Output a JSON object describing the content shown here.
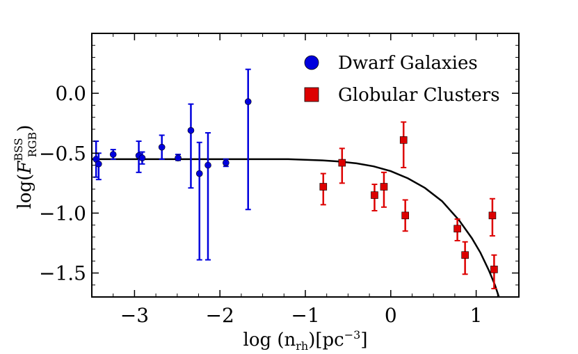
{
  "chart_data": {
    "type": "scatter",
    "xlabel": "log (n_rh)[pc^-3]",
    "ylabel": "log(F_RGB^BSS)",
    "xlim": [
      -3.5,
      1.5
    ],
    "ylim": [
      -1.7,
      0.5
    ],
    "xticks": [
      -3,
      -2,
      -1,
      0,
      1
    ],
    "xtick_labels": [
      "−3",
      "−2",
      "−1",
      "0",
      "1"
    ],
    "yticks": [
      0.0,
      -0.5,
      -1.0,
      -1.5
    ],
    "ytick_labels": [
      "0.0",
      "−0.5",
      "−1.0",
      "−1.5"
    ],
    "legend_position": "top-right",
    "series": [
      {
        "name": "Dwarf Galaxies",
        "marker": "circle",
        "color": "#0000dd",
        "points": [
          {
            "x": -3.45,
            "y": -0.55,
            "ylo": -0.7,
            "yhi": -0.4
          },
          {
            "x": -3.42,
            "y": -0.59,
            "ylo": -0.72,
            "yhi": -0.5
          },
          {
            "x": -3.25,
            "y": -0.51,
            "ylo": -0.55,
            "yhi": -0.47
          },
          {
            "x": -2.95,
            "y": -0.52,
            "ylo": -0.66,
            "yhi": -0.4
          },
          {
            "x": -2.91,
            "y": -0.54,
            "ylo": -0.59,
            "yhi": -0.49
          },
          {
            "x": -2.68,
            "y": -0.45,
            "ylo": -0.55,
            "yhi": -0.35
          },
          {
            "x": -2.49,
            "y": -0.54,
            "ylo": -0.56,
            "yhi": -0.51
          },
          {
            "x": -2.34,
            "y": -0.31,
            "ylo": -0.79,
            "yhi": -0.09
          },
          {
            "x": -2.24,
            "y": -0.67,
            "ylo": -1.39,
            "yhi": -0.41
          },
          {
            "x": -2.14,
            "y": -0.6,
            "ylo": -1.39,
            "yhi": -0.33
          },
          {
            "x": -1.93,
            "y": -0.58,
            "ylo": -0.61,
            "yhi": -0.55
          },
          {
            "x": -1.67,
            "y": -0.07,
            "ylo": -0.97,
            "yhi": 0.2
          }
        ]
      },
      {
        "name": "Globular Clusters",
        "marker": "square",
        "color": "#dd0000",
        "points": [
          {
            "x": -0.79,
            "y": -0.78,
            "ylo": -0.93,
            "yhi": -0.67
          },
          {
            "x": -0.57,
            "y": -0.58,
            "ylo": -0.75,
            "yhi": -0.46
          },
          {
            "x": -0.19,
            "y": -0.85,
            "ylo": -0.98,
            "yhi": -0.76
          },
          {
            "x": -0.08,
            "y": -0.78,
            "ylo": -0.95,
            "yhi": -0.66
          },
          {
            "x": 0.15,
            "y": -0.39,
            "ylo": -0.62,
            "yhi": -0.24
          },
          {
            "x": 0.17,
            "y": -1.02,
            "ylo": -1.15,
            "yhi": -0.89
          },
          {
            "x": 0.78,
            "y": -1.13,
            "ylo": -1.23,
            "yhi": -1.05
          },
          {
            "x": 0.87,
            "y": -1.35,
            "ylo": -1.51,
            "yhi": -1.24
          },
          {
            "x": 1.19,
            "y": -1.02,
            "ylo": -1.19,
            "yhi": -0.88
          },
          {
            "x": 1.21,
            "y": -1.47,
            "ylo": -1.63,
            "yhi": -1.35
          }
        ]
      }
    ],
    "fit_curve": {
      "color": "#000000",
      "x": [
        -3.5,
        -3.0,
        -2.5,
        -2.0,
        -1.5,
        -1.2,
        -1.0,
        -0.8,
        -0.6,
        -0.4,
        -0.2,
        0.0,
        0.2,
        0.4,
        0.6,
        0.8,
        0.95,
        1.05,
        1.15,
        1.22,
        1.28,
        1.33
      ],
      "y": [
        -0.55,
        -0.55,
        -0.55,
        -0.55,
        -0.55,
        -0.55,
        -0.555,
        -0.56,
        -0.57,
        -0.585,
        -0.61,
        -0.65,
        -0.71,
        -0.79,
        -0.9,
        -1.06,
        -1.21,
        -1.33,
        -1.48,
        -1.6,
        -1.73,
        -1.85
      ]
    }
  }
}
